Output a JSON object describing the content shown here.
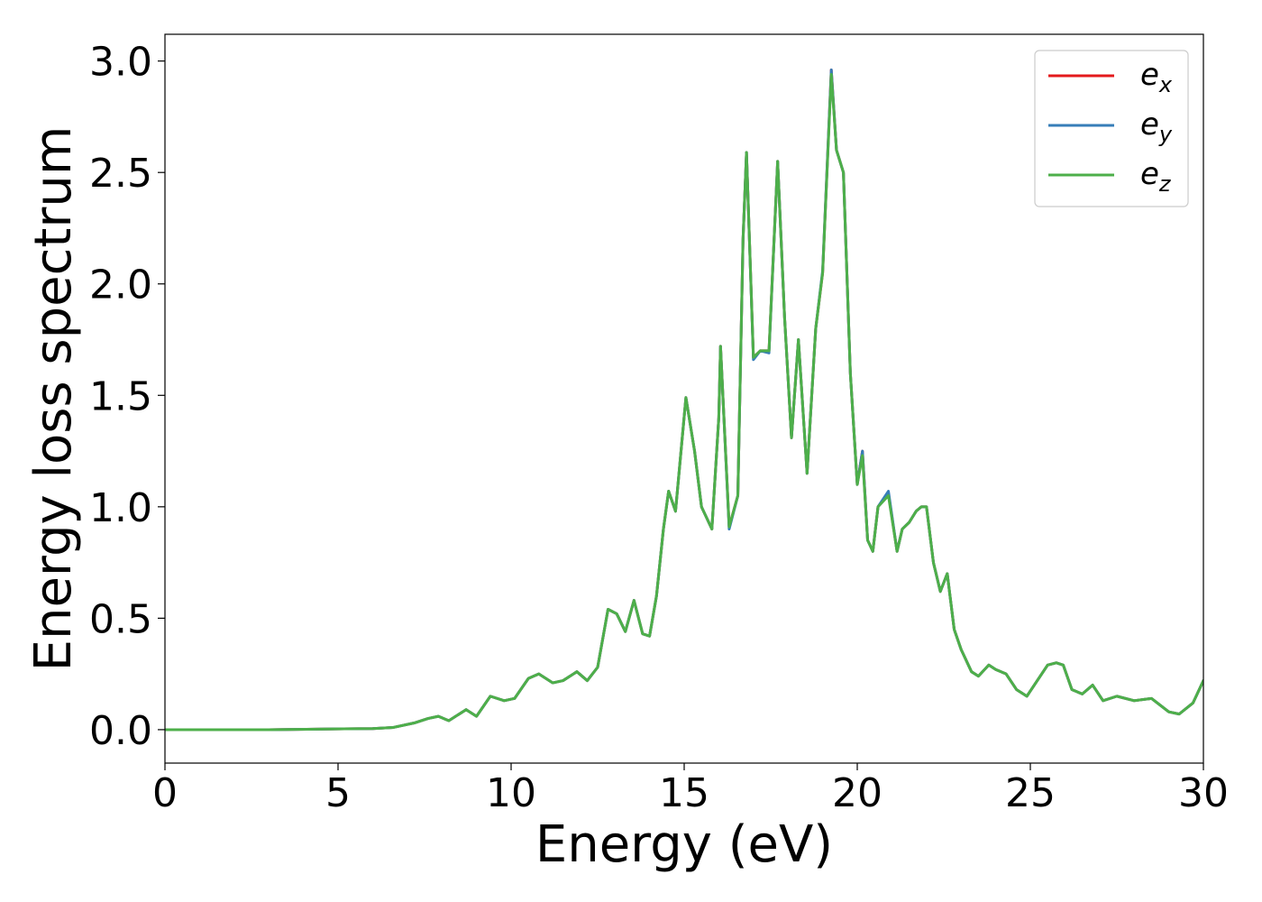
{
  "chart_data": {
    "type": "line",
    "xlabel": "Energy (eV)",
    "ylabel": "Energy loss spectrum",
    "xlim": [
      0,
      30
    ],
    "ylim": [
      -0.15,
      3.12
    ],
    "xticks": [
      0,
      5,
      10,
      15,
      20,
      25,
      30
    ],
    "yticks": [
      0.0,
      0.5,
      1.0,
      1.5,
      2.0,
      2.5,
      3.0
    ],
    "xtick_labels": [
      "0",
      "5",
      "10",
      "15",
      "20",
      "25",
      "30"
    ],
    "ytick_labels": [
      "0.0",
      "0.5",
      "1.0",
      "1.5",
      "2.0",
      "2.5",
      "3.0"
    ],
    "grid": false,
    "legend_position": "top-right",
    "series": [
      {
        "name": "e",
        "subscript": "x",
        "color": "#e41a1c",
        "x": [
          0,
          3,
          6,
          6.6,
          7.2,
          7.6,
          7.9,
          8.2,
          8.7,
          9.0,
          9.4,
          9.8,
          10.1,
          10.5,
          10.8,
          11.2,
          11.5,
          11.9,
          12.2,
          12.5,
          12.8,
          13.05,
          13.3,
          13.55,
          13.8,
          14.0,
          14.2,
          14.4,
          14.55,
          14.75,
          15.05,
          15.3,
          15.5,
          15.8,
          16.0,
          16.05,
          16.3,
          16.55,
          16.7,
          16.8,
          17.0,
          17.2,
          17.45,
          17.7,
          17.9,
          18.1,
          18.3,
          18.55,
          18.8,
          19.0,
          19.25,
          19.4,
          19.6,
          19.8,
          20.0,
          20.15,
          20.3,
          20.45,
          20.6,
          20.9,
          21.15,
          21.3,
          21.5,
          21.7,
          21.85,
          22.0,
          22.2,
          22.4,
          22.6,
          22.8,
          23.0,
          23.3,
          23.5,
          23.8,
          24.0,
          24.3,
          24.6,
          24.9,
          25.2,
          25.5,
          25.75,
          25.95,
          26.2,
          26.5,
          26.8,
          27.1,
          27.5,
          28.0,
          28.5,
          29.0,
          29.3,
          29.7,
          30.0
        ],
        "y": [
          0.0,
          0.0,
          0.005,
          0.01,
          0.03,
          0.05,
          0.06,
          0.04,
          0.09,
          0.06,
          0.15,
          0.13,
          0.14,
          0.23,
          0.25,
          0.21,
          0.22,
          0.26,
          0.22,
          0.28,
          0.54,
          0.52,
          0.44,
          0.58,
          0.43,
          0.42,
          0.6,
          0.9,
          1.07,
          0.98,
          1.49,
          1.25,
          1.0,
          0.9,
          1.4,
          1.72,
          0.91,
          1.05,
          2.2,
          2.59,
          1.67,
          1.7,
          1.7,
          2.55,
          1.85,
          1.31,
          1.75,
          1.15,
          1.8,
          2.05,
          2.96,
          2.6,
          2.5,
          1.6,
          1.1,
          1.25,
          0.85,
          0.8,
          1.0,
          1.06,
          0.8,
          0.9,
          0.93,
          0.98,
          1.0,
          1.0,
          0.75,
          0.62,
          0.7,
          0.45,
          0.36,
          0.26,
          0.24,
          0.29,
          0.27,
          0.25,
          0.18,
          0.15,
          0.22,
          0.29,
          0.3,
          0.29,
          0.18,
          0.16,
          0.2,
          0.13,
          0.15,
          0.13,
          0.14,
          0.08,
          0.07,
          0.12,
          0.22
        ]
      },
      {
        "name": "e",
        "subscript": "y",
        "color": "#377eb8",
        "x": [
          0,
          3,
          6,
          6.6,
          7.2,
          7.6,
          7.9,
          8.2,
          8.7,
          9.0,
          9.4,
          9.8,
          10.1,
          10.5,
          10.8,
          11.2,
          11.5,
          11.9,
          12.2,
          12.5,
          12.8,
          13.05,
          13.3,
          13.55,
          13.8,
          14.0,
          14.2,
          14.4,
          14.55,
          14.75,
          15.05,
          15.3,
          15.5,
          15.8,
          16.0,
          16.05,
          16.3,
          16.55,
          16.7,
          16.8,
          17.0,
          17.2,
          17.45,
          17.7,
          17.9,
          18.1,
          18.3,
          18.55,
          18.8,
          19.0,
          19.25,
          19.4,
          19.6,
          19.8,
          20.0,
          20.15,
          20.3,
          20.45,
          20.6,
          20.9,
          21.15,
          21.3,
          21.5,
          21.7,
          21.85,
          22.0,
          22.2,
          22.4,
          22.6,
          22.8,
          23.0,
          23.3,
          23.5,
          23.8,
          24.0,
          24.3,
          24.6,
          24.9,
          25.2,
          25.5,
          25.75,
          25.95,
          26.2,
          26.5,
          26.8,
          27.1,
          27.5,
          28.0,
          28.5,
          29.0,
          29.3,
          29.7,
          30.0
        ],
        "y": [
          0.0,
          0.0,
          0.005,
          0.01,
          0.03,
          0.05,
          0.06,
          0.04,
          0.09,
          0.06,
          0.15,
          0.13,
          0.14,
          0.23,
          0.25,
          0.21,
          0.22,
          0.26,
          0.22,
          0.28,
          0.54,
          0.52,
          0.44,
          0.58,
          0.43,
          0.42,
          0.6,
          0.9,
          1.07,
          0.98,
          1.49,
          1.25,
          1.0,
          0.9,
          1.4,
          1.72,
          0.9,
          1.05,
          2.2,
          2.59,
          1.66,
          1.7,
          1.69,
          2.55,
          1.85,
          1.31,
          1.75,
          1.15,
          1.8,
          2.06,
          2.96,
          2.6,
          2.5,
          1.6,
          1.1,
          1.25,
          0.85,
          0.8,
          1.0,
          1.07,
          0.8,
          0.9,
          0.93,
          0.98,
          1.0,
          1.0,
          0.75,
          0.62,
          0.7,
          0.45,
          0.36,
          0.26,
          0.24,
          0.29,
          0.27,
          0.25,
          0.18,
          0.15,
          0.22,
          0.29,
          0.3,
          0.29,
          0.18,
          0.16,
          0.2,
          0.13,
          0.15,
          0.13,
          0.14,
          0.08,
          0.07,
          0.12,
          0.22
        ]
      },
      {
        "name": "e",
        "subscript": "z",
        "color": "#4daf4a",
        "x": [
          0,
          3,
          6,
          6.6,
          7.2,
          7.6,
          7.9,
          8.2,
          8.7,
          9.0,
          9.4,
          9.8,
          10.1,
          10.5,
          10.8,
          11.2,
          11.5,
          11.9,
          12.2,
          12.5,
          12.8,
          13.05,
          13.3,
          13.55,
          13.8,
          14.0,
          14.2,
          14.4,
          14.55,
          14.75,
          15.05,
          15.3,
          15.5,
          15.8,
          16.0,
          16.05,
          16.3,
          16.55,
          16.7,
          16.8,
          17.0,
          17.2,
          17.45,
          17.7,
          17.9,
          18.1,
          18.3,
          18.55,
          18.8,
          19.0,
          19.25,
          19.4,
          19.6,
          19.8,
          20.0,
          20.15,
          20.3,
          20.45,
          20.6,
          20.9,
          21.15,
          21.3,
          21.5,
          21.7,
          21.85,
          22.0,
          22.2,
          22.4,
          22.6,
          22.8,
          23.0,
          23.3,
          23.5,
          23.8,
          24.0,
          24.3,
          24.6,
          24.9,
          25.2,
          25.5,
          25.75,
          25.95,
          26.2,
          26.5,
          26.8,
          27.1,
          27.5,
          28.0,
          28.5,
          29.0,
          29.3,
          29.7,
          30.0
        ],
        "y": [
          0.0,
          0.0,
          0.005,
          0.01,
          0.03,
          0.05,
          0.06,
          0.04,
          0.09,
          0.06,
          0.15,
          0.13,
          0.14,
          0.23,
          0.25,
          0.21,
          0.22,
          0.26,
          0.22,
          0.28,
          0.54,
          0.52,
          0.44,
          0.58,
          0.43,
          0.42,
          0.6,
          0.9,
          1.07,
          0.98,
          1.49,
          1.25,
          1.0,
          0.9,
          1.4,
          1.72,
          0.91,
          1.05,
          2.2,
          2.59,
          1.67,
          1.7,
          1.7,
          2.55,
          1.85,
          1.31,
          1.75,
          1.15,
          1.8,
          2.05,
          2.94,
          2.6,
          2.5,
          1.6,
          1.1,
          1.23,
          0.85,
          0.8,
          1.0,
          1.05,
          0.8,
          0.9,
          0.93,
          0.98,
          1.0,
          1.0,
          0.75,
          0.62,
          0.7,
          0.45,
          0.36,
          0.26,
          0.24,
          0.29,
          0.27,
          0.25,
          0.18,
          0.15,
          0.22,
          0.29,
          0.3,
          0.29,
          0.18,
          0.16,
          0.2,
          0.13,
          0.15,
          0.13,
          0.14,
          0.08,
          0.07,
          0.12,
          0.22
        ]
      }
    ]
  }
}
